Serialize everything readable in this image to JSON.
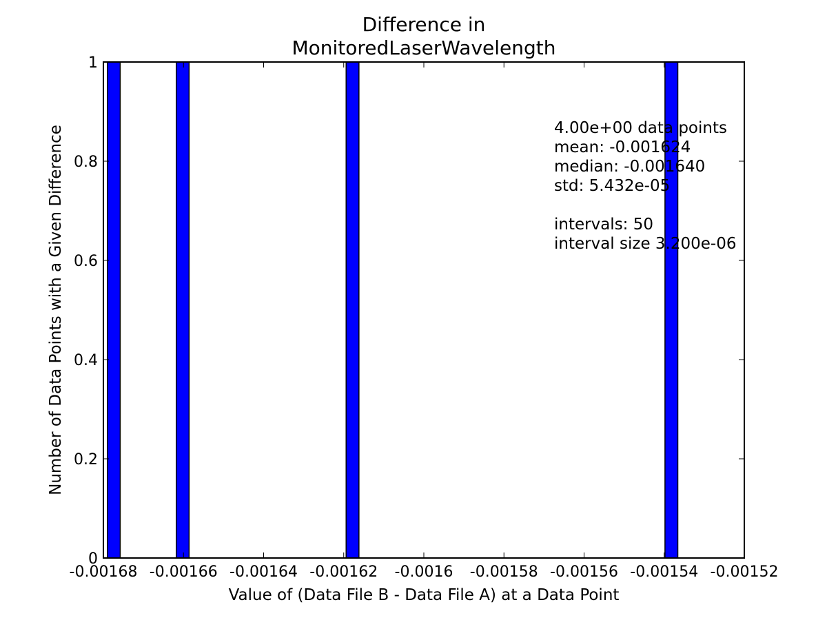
{
  "chart_data": {
    "type": "bar",
    "title_lines": [
      "Difference in",
      "MonitoredLaserWavelength"
    ],
    "xlabel": "Value of (Data File B - Data File A) at a Data Point",
    "ylabel": "Number of Data Points with a Given Difference",
    "xlim": [
      -0.00168,
      -0.00152
    ],
    "ylim": [
      0,
      1
    ],
    "xticks": [
      -0.00168,
      -0.00166,
      -0.00164,
      -0.00162,
      -0.0016,
      -0.00158,
      -0.00156,
      -0.00154,
      -0.00152
    ],
    "xtick_labels": [
      "-0.00168",
      "-0.00166",
      "-0.00164",
      "-0.00162",
      "-0.0016",
      "-0.00158",
      "-0.00156",
      "-0.00154",
      "-0.00152"
    ],
    "yticks": [
      0,
      0.2,
      0.4,
      0.6,
      0.8,
      1
    ],
    "ytick_labels": [
      "0",
      "0.2",
      "0.4",
      "0.6",
      "0.8",
      "1"
    ],
    "bin_width": 3.2e-06,
    "bars": [
      {
        "x_start": -0.001679,
        "count": 1
      },
      {
        "x_start": -0.0016618,
        "count": 1
      },
      {
        "x_start": -0.0016194,
        "count": 1
      },
      {
        "x_start": -0.0015398,
        "count": 1
      }
    ],
    "bar_color": "#0000ff",
    "stats_text": [
      "4.00e+00 data points",
      "mean: -0.001624",
      "median: -0.001640",
      "std: 5.432e-05",
      "",
      "intervals: 50",
      "interval size 3.200e-06"
    ],
    "grid": false
  }
}
